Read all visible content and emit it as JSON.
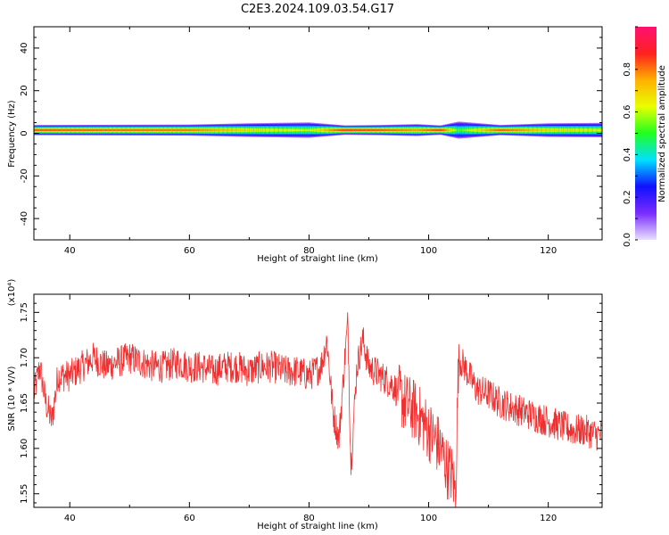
{
  "title": "C2E3.2024.109.03.54.G17",
  "colors": {
    "snr_line": "#f03030",
    "axis": "#000000",
    "background": "#ffffff",
    "colormap": [
      "#e8e0ff",
      "#7a2cff",
      "#1010ff",
      "#00e0ff",
      "#20ff20",
      "#e8ff00",
      "#ffb000",
      "#ff2020",
      "#ff1070"
    ]
  },
  "chart_data": [
    {
      "type": "heatmap",
      "title": "",
      "xlabel": "Height of straight line (km)",
      "ylabel": "Frequency (Hz)",
      "xlim": [
        34,
        129
      ],
      "ylim": [
        -50,
        50
      ],
      "x_ticks": [
        40,
        60,
        80,
        100,
        120
      ],
      "y_ticks": [
        -40,
        -20,
        0,
        20,
        40
      ],
      "grid": false,
      "colorbar": {
        "label": "Normalized spectral amplitude",
        "range": [
          0.0,
          1.0
        ],
        "ticks": [
          "0.0",
          "0.2",
          "0.4",
          "0.6",
          "0.8"
        ]
      },
      "band": {
        "center_frequency_hz": 1.5,
        "description_points": [
          {
            "x": 34,
            "peak_amplitude": 0.9
          },
          {
            "x": 60,
            "peak_amplitude": 0.85
          },
          {
            "x": 70,
            "peak_amplitude": 0.7
          },
          {
            "x": 80,
            "peak_amplitude": 0.6
          },
          {
            "x": 86,
            "peak_amplitude": 0.95
          },
          {
            "x": 92,
            "peak_amplitude": 0.9
          },
          {
            "x": 98,
            "peak_amplitude": 0.8
          },
          {
            "x": 102,
            "peak_amplitude": 0.95
          },
          {
            "x": 105,
            "peak_amplitude": 0.5
          },
          {
            "x": 112,
            "peak_amplitude": 0.9
          },
          {
            "x": 120,
            "peak_amplitude": 0.7
          },
          {
            "x": 129,
            "peak_amplitude": 0.65
          }
        ]
      }
    },
    {
      "type": "line",
      "title": "",
      "xlabel": "Height of straight line (km)",
      "ylabel": "SNR (10 * V/V)",
      "y_multiplier": "(x10⁴)",
      "xlim": [
        34,
        129
      ],
      "ylim": [
        1.535,
        1.77
      ],
      "x_ticks": [
        40,
        60,
        80,
        100,
        120
      ],
      "y_ticks": [
        "1.55",
        "1.60",
        "1.65",
        "1.70",
        "1.75"
      ],
      "grid": false,
      "series": [
        {
          "x": [
            34,
            35,
            36,
            37,
            38,
            40,
            42,
            44,
            46,
            48,
            50,
            52,
            54,
            56,
            58,
            60,
            62,
            64,
            66,
            68,
            70,
            72,
            74,
            76,
            78,
            80,
            82,
            83,
            84,
            85,
            86,
            86.5,
            87,
            88,
            89,
            90,
            92,
            94,
            96,
            98,
            100,
            101,
            102,
            103,
            104,
            104.5,
            105,
            106,
            108,
            110,
            112,
            114,
            116,
            118,
            120,
            122,
            124,
            126,
            128,
            129
          ],
          "y": [
            1.66,
            1.69,
            1.65,
            1.63,
            1.68,
            1.68,
            1.69,
            1.7,
            1.69,
            1.695,
            1.7,
            1.695,
            1.69,
            1.69,
            1.695,
            1.69,
            1.69,
            1.685,
            1.69,
            1.69,
            1.685,
            1.69,
            1.69,
            1.685,
            1.685,
            1.68,
            1.69,
            1.72,
            1.64,
            1.61,
            1.7,
            1.74,
            1.58,
            1.69,
            1.72,
            1.69,
            1.68,
            1.67,
            1.65,
            1.64,
            1.62,
            1.61,
            1.6,
            1.58,
            1.57,
            1.55,
            1.7,
            1.69,
            1.665,
            1.66,
            1.65,
            1.645,
            1.64,
            1.635,
            1.63,
            1.625,
            1.62,
            1.62,
            1.615,
            1.615
          ]
        }
      ]
    }
  ]
}
